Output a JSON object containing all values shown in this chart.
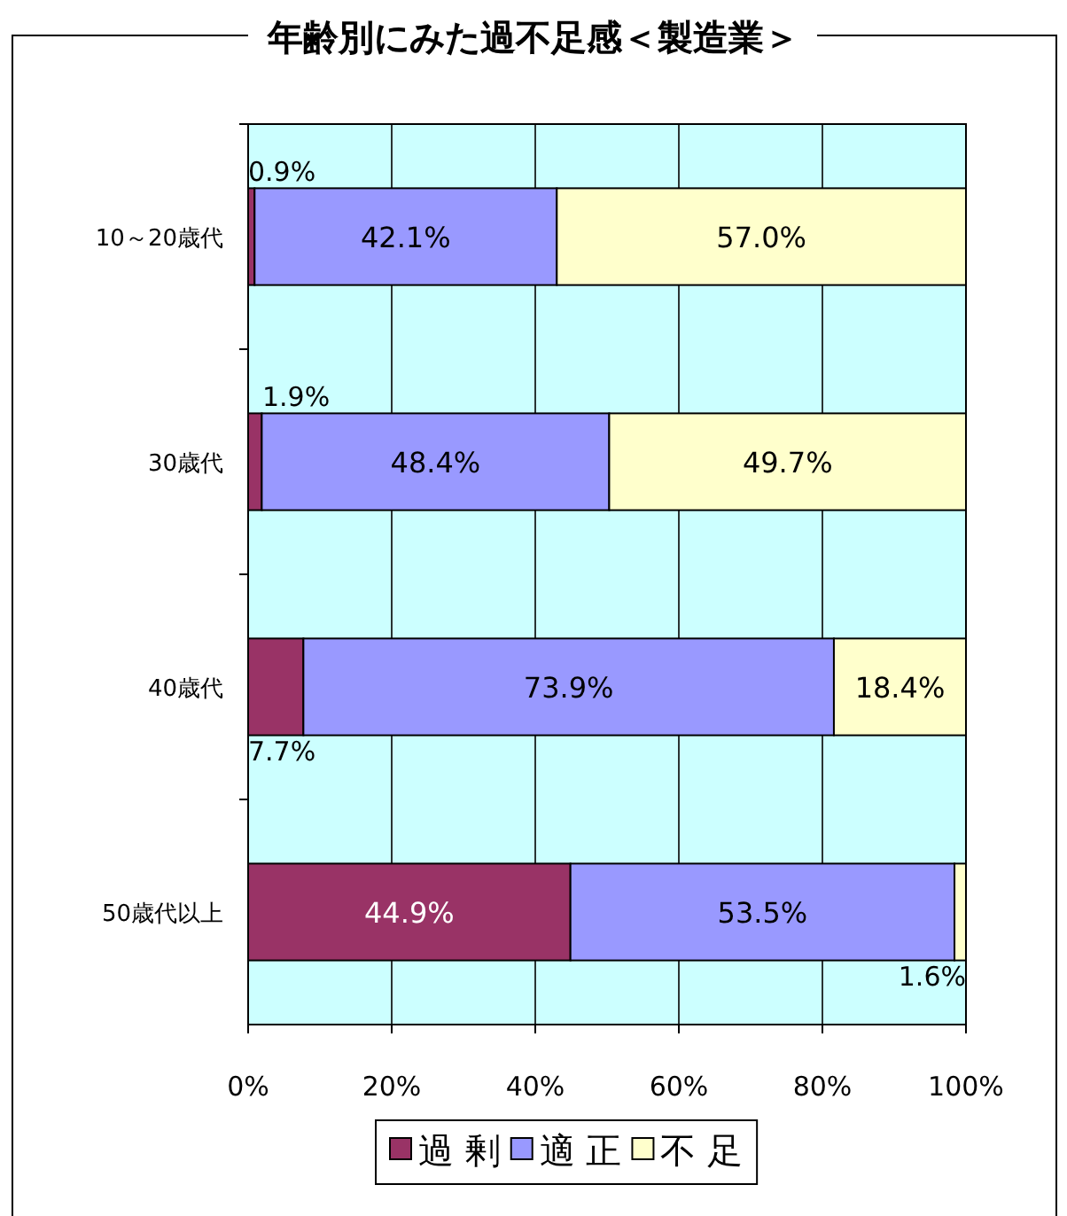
{
  "chart_data": {
    "type": "bar",
    "title": "年齢別にみた過不足感＜製造業＞",
    "orientation": "horizontal",
    "stacked": true,
    "categories": [
      "10～20歳代",
      "30歳代",
      "40歳代",
      "50歳代以上"
    ],
    "series": [
      {
        "name": "過 剰",
        "color": "#993366",
        "values": [
          0.9,
          1.9,
          7.7,
          44.9
        ],
        "value_labels": [
          "0.9%",
          "1.9%",
          "7.7%",
          "44.9%"
        ]
      },
      {
        "name": "適 正",
        "color": "#9999ff",
        "values": [
          42.1,
          48.4,
          73.9,
          53.5
        ],
        "value_labels": [
          "42.1%",
          "48.4%",
          "73.9%",
          "53.5%"
        ]
      },
      {
        "name": "不 足",
        "color": "#ffffcc",
        "values": [
          57.0,
          49.7,
          18.4,
          1.6
        ],
        "value_labels": [
          "57.0%",
          "49.7%",
          "18.4%",
          "1.6%"
        ]
      }
    ],
    "xlim": [
      0,
      100
    ],
    "xticks": [
      {
        "value": 0,
        "label": "0%"
      },
      {
        "value": 20,
        "label": "20%"
      },
      {
        "value": 40,
        "label": "40%"
      },
      {
        "value": 60,
        "label": "60%"
      },
      {
        "value": 80,
        "label": "80%"
      },
      {
        "value": 100,
        "label": "100%"
      }
    ],
    "grid": "x",
    "legend": "bottom"
  }
}
